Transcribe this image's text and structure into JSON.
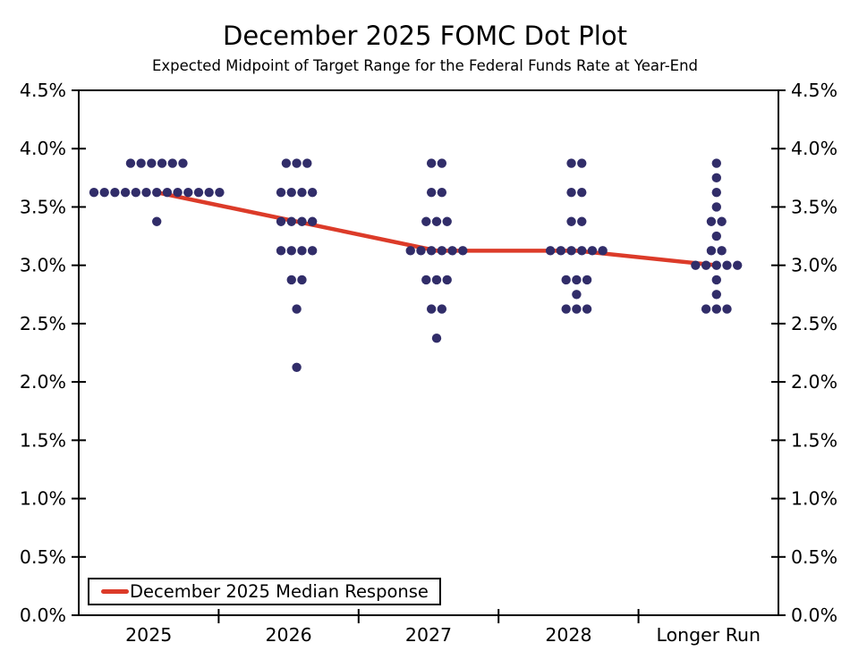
{
  "title": "December 2025 FOMC Dot Plot",
  "subtitle": "Expected Midpoint of Target Range for the Federal Funds Rate at Year-End",
  "legend": {
    "label": "December 2025 Median Response"
  },
  "colors": {
    "dot": "#312d69",
    "median_line": "#dc3b29",
    "axis": "#000000",
    "background": "#ffffff"
  },
  "chart_data": {
    "type": "scatter",
    "title": "December 2025 FOMC Dot Plot",
    "subtitle": "Expected Midpoint of Target Range for the Federal Funds Rate at Year-End",
    "categories": [
      "2025",
      "2026",
      "2027",
      "2028",
      "Longer Run"
    ],
    "y_axis": {
      "min": 0.0,
      "max": 4.5,
      "tick_step": 0.5,
      "tick_labels": [
        "4.5%",
        "4.0%",
        "3.5%",
        "3.0%",
        "2.5%",
        "2.0%",
        "1.5%",
        "1.0%",
        "0.5%",
        "0.0%"
      ],
      "tick_values": [
        4.5,
        4.0,
        3.5,
        3.0,
        2.5,
        2.0,
        1.5,
        1.0,
        0.5,
        0.0
      ],
      "labels_on_both_sides": true,
      "grid": false
    },
    "columns": [
      {
        "category": "2025",
        "dots": [
          {
            "rate": 3.875,
            "count": 6
          },
          {
            "rate": 3.625,
            "count": 13
          },
          {
            "rate": 3.375,
            "count": 1
          }
        ]
      },
      {
        "category": "2026",
        "dots": [
          {
            "rate": 3.875,
            "count": 3
          },
          {
            "rate": 3.625,
            "count": 4
          },
          {
            "rate": 3.375,
            "count": 4
          },
          {
            "rate": 3.125,
            "count": 4
          },
          {
            "rate": 2.875,
            "count": 2
          },
          {
            "rate": 2.625,
            "count": 1
          },
          {
            "rate": 2.125,
            "count": 1
          }
        ]
      },
      {
        "category": "2027",
        "dots": [
          {
            "rate": 3.875,
            "count": 2
          },
          {
            "rate": 3.625,
            "count": 2
          },
          {
            "rate": 3.375,
            "count": 3
          },
          {
            "rate": 3.125,
            "count": 6
          },
          {
            "rate": 2.875,
            "count": 3
          },
          {
            "rate": 2.625,
            "count": 2
          },
          {
            "rate": 2.375,
            "count": 1
          }
        ]
      },
      {
        "category": "2028",
        "dots": [
          {
            "rate": 3.875,
            "count": 2
          },
          {
            "rate": 3.625,
            "count": 2
          },
          {
            "rate": 3.375,
            "count": 2
          },
          {
            "rate": 3.125,
            "count": 6
          },
          {
            "rate": 2.875,
            "count": 3
          },
          {
            "rate": 2.75,
            "count": 1
          },
          {
            "rate": 2.625,
            "count": 3
          }
        ]
      },
      {
        "category": "Longer Run",
        "dots": [
          {
            "rate": 3.875,
            "count": 1
          },
          {
            "rate": 3.75,
            "count": 1
          },
          {
            "rate": 3.625,
            "count": 1
          },
          {
            "rate": 3.5,
            "count": 1
          },
          {
            "rate": 3.375,
            "count": 2
          },
          {
            "rate": 3.25,
            "count": 1
          },
          {
            "rate": 3.125,
            "count": 2
          },
          {
            "rate": 3.0,
            "count": 5
          },
          {
            "rate": 2.875,
            "count": 1
          },
          {
            "rate": 2.75,
            "count": 1
          },
          {
            "rate": 2.625,
            "count": 3
          }
        ]
      }
    ],
    "median_series": {
      "name": "December 2025 Median Response",
      "values": [
        3.625,
        3.375,
        3.125,
        3.125,
        3.0
      ],
      "color": "#dc3b29"
    },
    "legend_position": "bottom-left"
  }
}
